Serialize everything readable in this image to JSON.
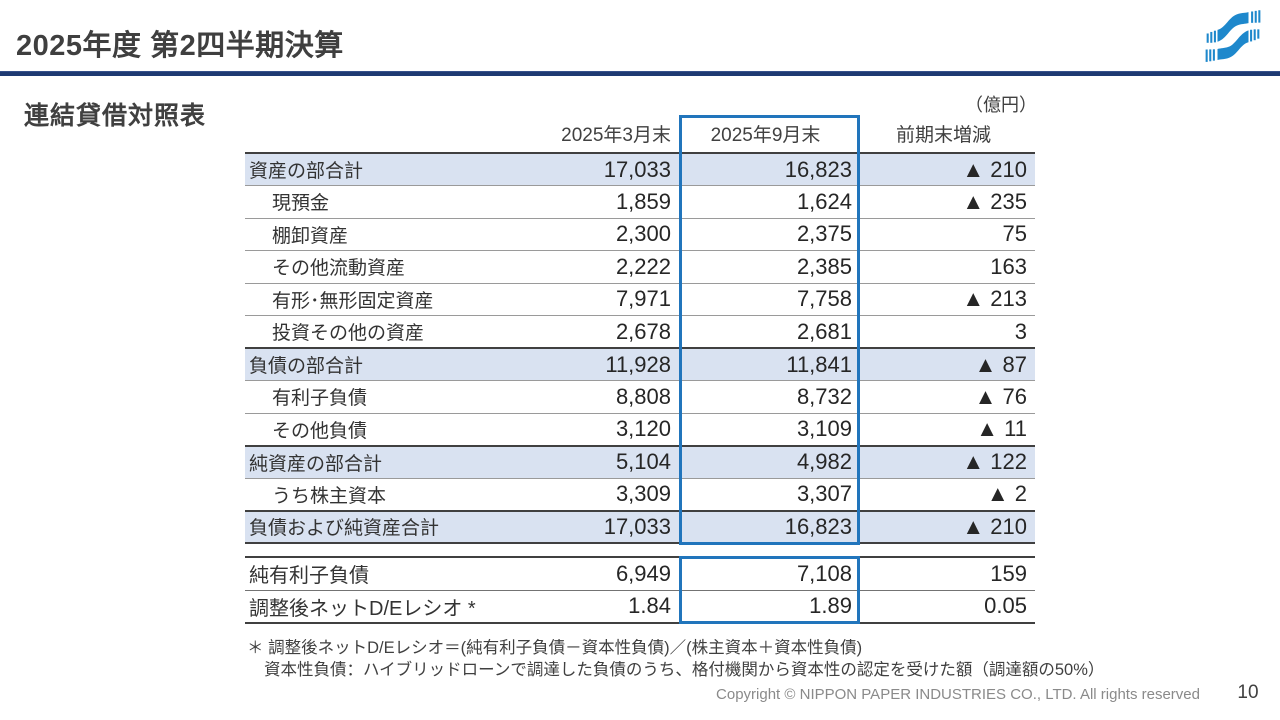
{
  "slide": {
    "title": "2025年度 第2四半期決算",
    "page_number": "10",
    "copyright": "Copyright © NIPPON PAPER INDUSTRIES CO., LTD. All rights reserved"
  },
  "section": {
    "heading": "連結貸借対照表",
    "unit_label": "（億円）"
  },
  "balance_table": {
    "columns": [
      "2025年3月末",
      "2025年9月末",
      "前期末増減"
    ],
    "highlighted_column": "2025年9月末",
    "rows": [
      {
        "label": "資産の部合計",
        "type": "total",
        "line": "thin",
        "mar2025": "17,033",
        "sep2025": "16,823",
        "change": "▲ 210"
      },
      {
        "label": "現預金",
        "type": "sub",
        "line": "thin",
        "mar2025": "1,859",
        "sep2025": "1,624",
        "change": "▲ 235"
      },
      {
        "label": "棚卸資産",
        "type": "sub",
        "line": "thin",
        "mar2025": "2,300",
        "sep2025": "2,375",
        "change": "75"
      },
      {
        "label": "その他流動資産",
        "type": "sub",
        "line": "thin",
        "mar2025": "2,222",
        "sep2025": "2,385",
        "change": "163"
      },
      {
        "label": "有形･無形固定資産",
        "type": "sub",
        "line": "thin",
        "mar2025": "7,971",
        "sep2025": "7,758",
        "change": "▲ 213"
      },
      {
        "label": "投資その他の資産",
        "type": "sub",
        "line": "thick",
        "mar2025": "2,678",
        "sep2025": "2,681",
        "change": "3"
      },
      {
        "label": "負債の部合計",
        "type": "total",
        "line": "thin",
        "mar2025": "11,928",
        "sep2025": "11,841",
        "change": "▲ 87"
      },
      {
        "label": "有利子負債",
        "type": "sub",
        "line": "thin",
        "mar2025": "8,808",
        "sep2025": "8,732",
        "change": "▲ 76"
      },
      {
        "label": "その他負債",
        "type": "sub",
        "line": "thick",
        "mar2025": "3,120",
        "sep2025": "3,109",
        "change": "▲ 11"
      },
      {
        "label": "純資産の部合計",
        "type": "total",
        "line": "thin",
        "mar2025": "5,104",
        "sep2025": "4,982",
        "change": "▲ 122"
      },
      {
        "label": "うち株主資本",
        "type": "sub",
        "line": "thick",
        "mar2025": "3,309",
        "sep2025": "3,307",
        "change": "▲ 2"
      },
      {
        "label": "負債および純資産合計",
        "type": "total",
        "line": "thick",
        "mar2025": "17,033",
        "sep2025": "16,823",
        "change": "▲ 210"
      }
    ]
  },
  "metrics_table": {
    "rows": [
      {
        "label": "純有利子負債",
        "line": "mid",
        "mar2025": "6,949",
        "sep2025": "7,108",
        "change": "159"
      },
      {
        "label": "調整後ネットD/Eレシオ *",
        "line": "end",
        "mar2025": "1.84",
        "sep2025": "1.89",
        "change": "0.05"
      }
    ]
  },
  "footnotes": [
    "＊ 調整後ネットD/Eレシオ＝(純有利子負債－資本性負債)／(株主資本＋資本性負債)",
    "資本性負債：ハイブリッドローンで調達した負債のうち、格付機関から資本性の認定を受けた額（調達額の50%）"
  ],
  "colors": {
    "title_rule_navy": "#1e3a72",
    "highlight_row_bg": "#d9e2f1",
    "column_box_blue": "#2175bc",
    "brand_blue": "#1e88cc",
    "text_dark": "#333333",
    "footer_gray": "#8a8a8a"
  }
}
